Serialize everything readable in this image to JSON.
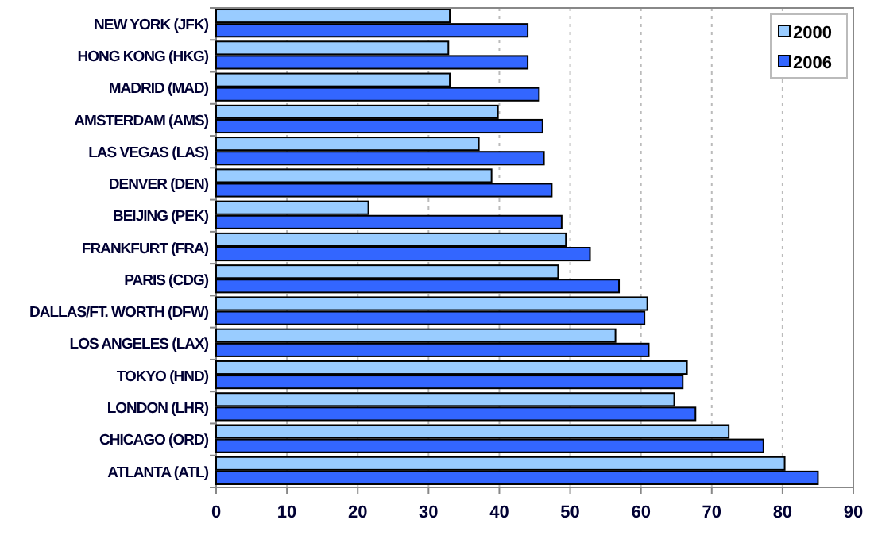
{
  "chart_data": {
    "type": "bar",
    "orientation": "horizontal",
    "categories": [
      "NEW YORK (JFK)",
      "HONG KONG (HKG)",
      "MADRID (MAD)",
      "AMSTERDAM (AMS)",
      "LAS VEGAS (LAS)",
      "DENVER (DEN)",
      "BEIJING (PEK)",
      "FRANKFURT (FRA)",
      "PARIS (CDG)",
      "DALLAS/FT. WORTH (DFW)",
      "LOS ANGELES (LAX)",
      "TOKYO (HND)",
      "LONDON (LHR)",
      "CHICAGO (ORD)",
      "ATLANTA (ATL)"
    ],
    "series": [
      {
        "name": "2000",
        "color": "#99ccff",
        "values": [
          33.0,
          32.8,
          33.0,
          39.8,
          37.1,
          38.9,
          21.5,
          49.4,
          48.3,
          60.9,
          56.4,
          66.5,
          64.7,
          72.4,
          80.3
        ]
      },
      {
        "name": "2006",
        "color": "#3366ff",
        "values": [
          44.0,
          44.0,
          45.6,
          46.1,
          46.3,
          47.4,
          48.8,
          52.8,
          56.9,
          60.5,
          61.1,
          65.9,
          67.7,
          77.3,
          85.0
        ]
      }
    ],
    "xlim": [
      0,
      90
    ],
    "xticks": [
      0,
      10,
      20,
      30,
      40,
      50,
      60,
      70,
      80,
      90
    ],
    "grid": "x",
    "legend": "top right"
  }
}
